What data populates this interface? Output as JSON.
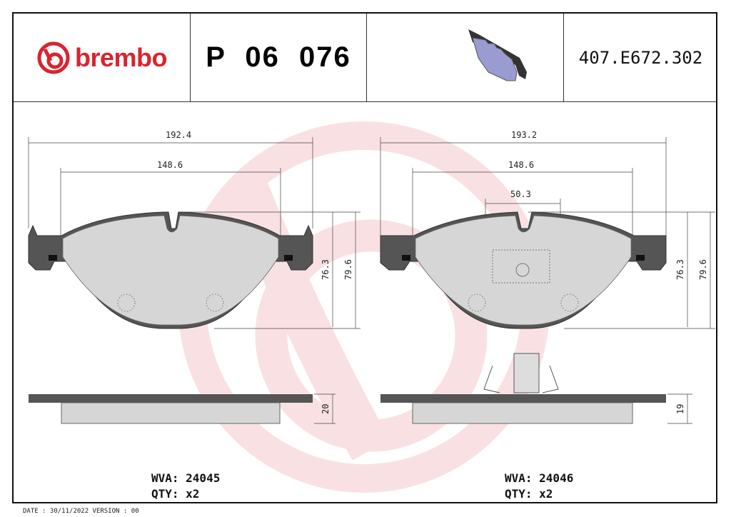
{
  "header": {
    "brand": "brembo",
    "part_number": "P 06 076",
    "reference": "407.E672.302",
    "brand_color": "#d9242f"
  },
  "left_pad": {
    "dimensions": {
      "overall_width": "192.4",
      "inner_width": "148.6",
      "height_inner": "76.3",
      "height_outer": "79.6",
      "thickness": "20"
    },
    "wva": "WVA: 24045",
    "qty": "QTY: x2"
  },
  "right_pad": {
    "dimensions": {
      "overall_width": "193.2",
      "inner_width": "148.6",
      "sensor_width": "50.3",
      "height_inner": "76.3",
      "height_outer": "79.6",
      "thickness": "19"
    },
    "wva": "WVA: 24046",
    "qty": "QTY: x2"
  },
  "footer": {
    "date_version": "DATE : 30/11/2022 VERSION : 00"
  }
}
